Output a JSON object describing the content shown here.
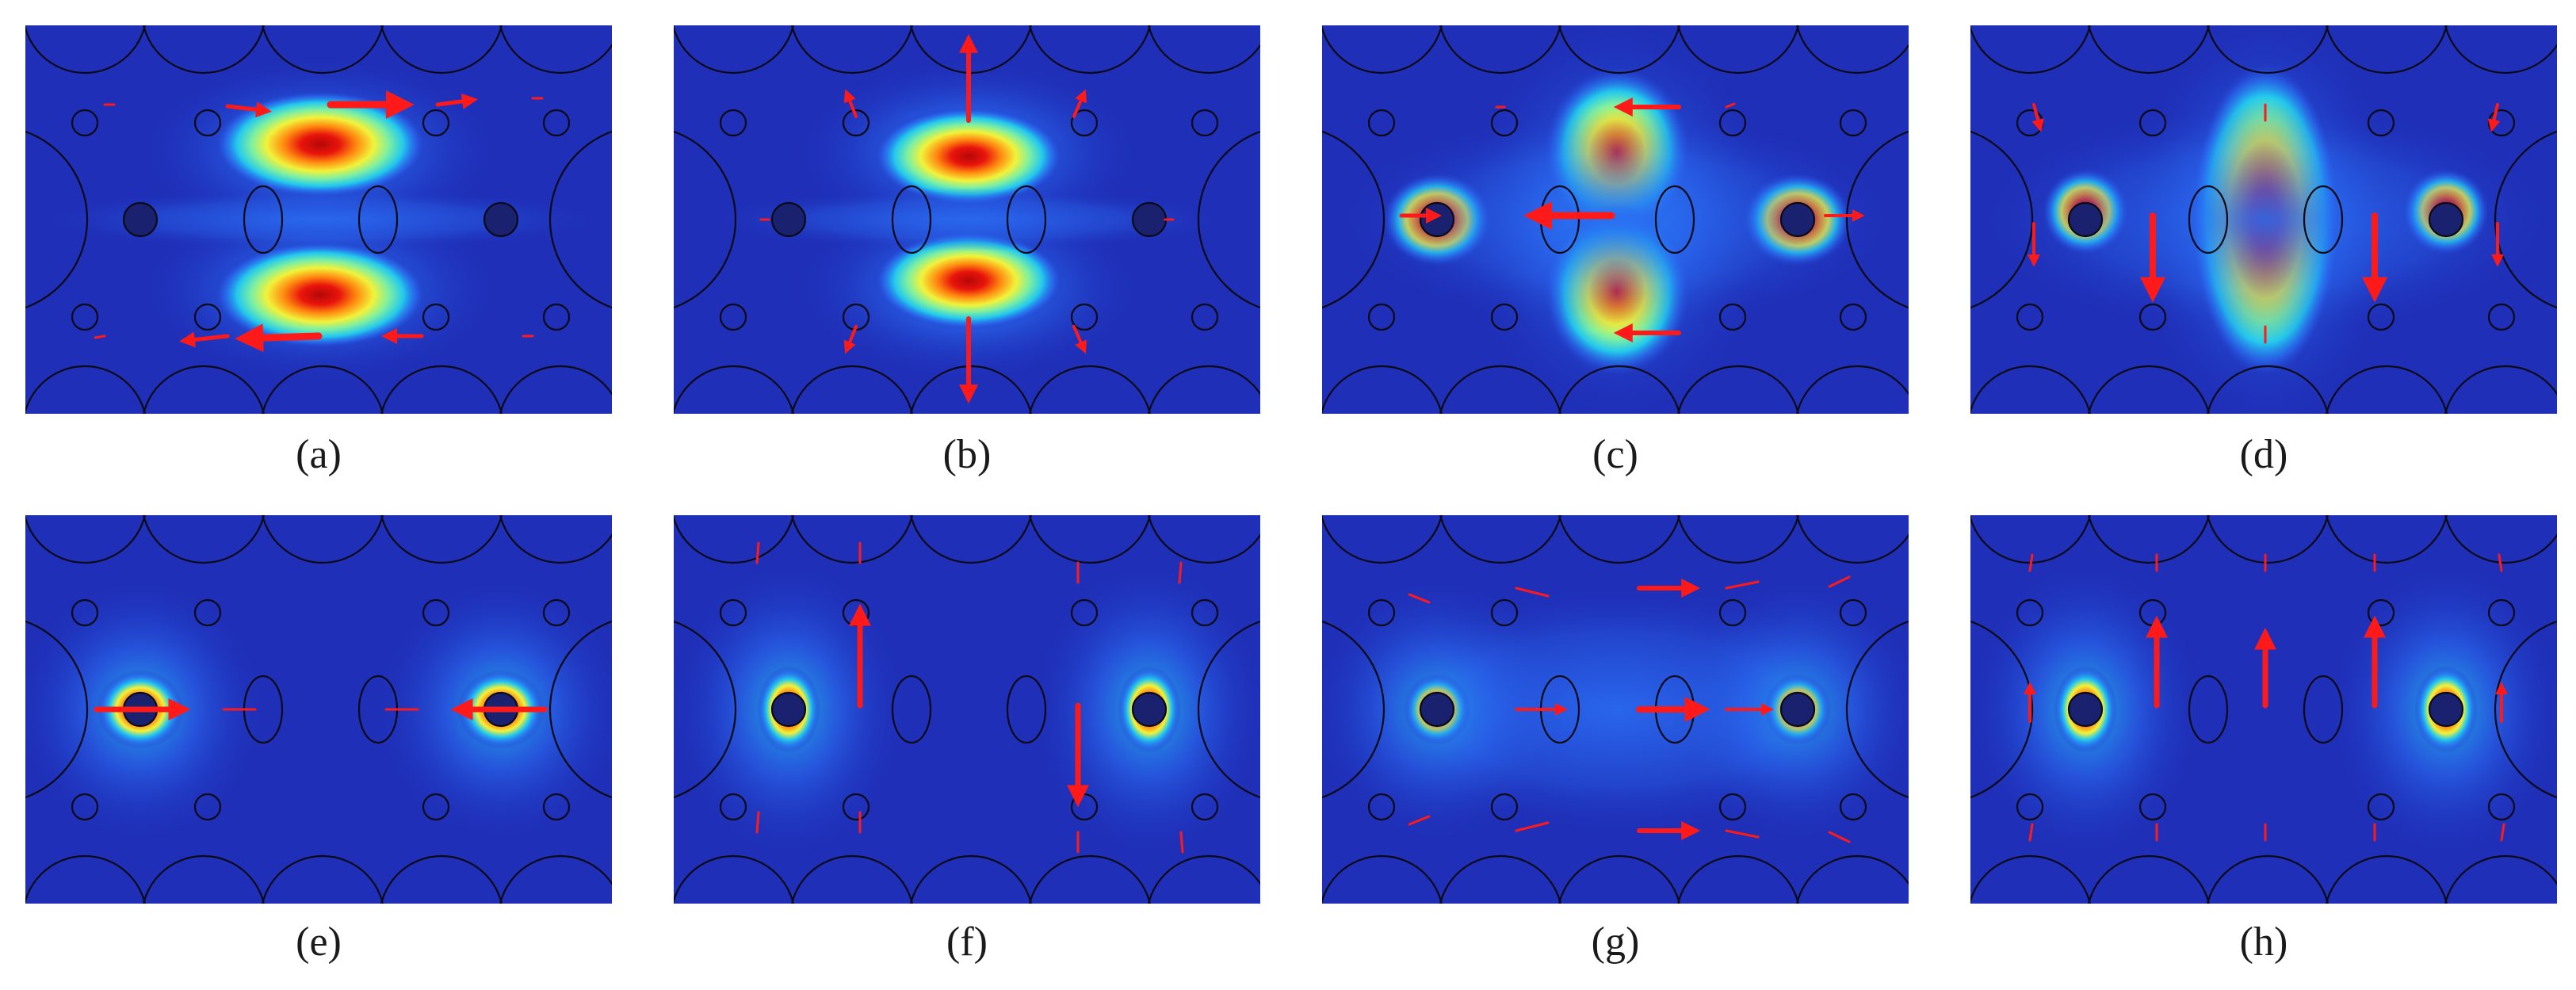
{
  "panels": [
    {
      "label": "(a)",
      "mode": "a"
    },
    {
      "label": "(b)",
      "mode": "b"
    },
    {
      "label": "(c)",
      "mode": "c"
    },
    {
      "label": "(d)",
      "mode": "d"
    },
    {
      "label": "(e)",
      "mode": "e"
    },
    {
      "label": "(f)",
      "mode": "f"
    },
    {
      "label": "(g)",
      "mode": "g"
    },
    {
      "label": "(h)",
      "mode": "h"
    }
  ],
  "colors": {
    "background_field": "#1f2fb8",
    "hole_outline": "#0a0a14",
    "defect_rod": "#1a2270",
    "arrow": "#ff1a1a",
    "label": "#1a1a1a"
  },
  "colormap": [
    "#1f2fb8",
    "#2a6cf2",
    "#22c8ee",
    "#7ff0a0",
    "#f2f23a",
    "#ff8a10",
    "#e8140c",
    "#b40808"
  ]
}
